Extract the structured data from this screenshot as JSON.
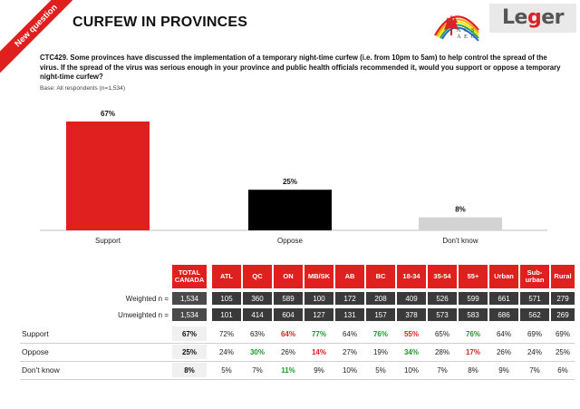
{
  "badge": "New question",
  "title": "CURFEW IN PROVINCES",
  "logos": {
    "acs_text_line1": "A C S",
    "acs_text_line2": "A E C",
    "leger_prefix": "Le",
    "leger_g": "g",
    "leger_suffix": "er"
  },
  "question": "CTC429. Some provinces have discussed the implementation of a temporary night-time curfew (i.e. from 10pm to 5am) to help control the spread of the virus. If the spread of the virus was serious enough in your province and public health officials recommended it, would you support or oppose a temporary night-time curfew?",
  "base": "Base: All respondents (n=1,534)",
  "colors": {
    "accent": "#e0201f",
    "dark": "#000000",
    "grey": "#d3d3d3",
    "green": "#1a9a2a"
  },
  "chart_data": {
    "type": "bar",
    "categories": [
      "Support",
      "Oppose",
      "Don't know"
    ],
    "values": [
      67,
      25,
      8
    ],
    "value_labels": [
      "67%",
      "25%",
      "8%"
    ],
    "colors": [
      "#e0201f",
      "#000000",
      "#d3d3d3"
    ],
    "ylim": [
      0,
      67
    ],
    "grid": false
  },
  "table": {
    "headers": [
      "TOTAL CANADA",
      "ATL",
      "QC",
      "ON",
      "MB/SK",
      "AB",
      "BC",
      "18-34",
      "35-54",
      "55+",
      "Urban",
      "Sub-urban",
      "Rural"
    ],
    "weighted_label": "Weighted n =",
    "unweighted_label": "Unweighted n =",
    "weighted": [
      "1,534",
      "105",
      "360",
      "589",
      "100",
      "172",
      "208",
      "409",
      "526",
      "599",
      "661",
      "571",
      "279"
    ],
    "unweighted": [
      "1,534",
      "101",
      "414",
      "604",
      "127",
      "131",
      "157",
      "378",
      "573",
      "583",
      "686",
      "562",
      "269"
    ],
    "rows": [
      {
        "label": "Support",
        "values": [
          "67%",
          "72%",
          "63%",
          "64%",
          "77%",
          "64%",
          "76%",
          "55%",
          "65%",
          "76%",
          "64%",
          "69%",
          "69%"
        ],
        "status": [
          "",
          "",
          "",
          "red",
          "green",
          "",
          "green",
          "red",
          "",
          "green",
          "",
          "",
          ""
        ]
      },
      {
        "label": "Oppose",
        "values": [
          "25%",
          "24%",
          "30%",
          "26%",
          "14%",
          "27%",
          "19%",
          "34%",
          "28%",
          "17%",
          "26%",
          "24%",
          "25%"
        ],
        "status": [
          "",
          "",
          "green",
          "",
          "red",
          "",
          "",
          "green",
          "",
          "red",
          "",
          "",
          ""
        ]
      },
      {
        "label": "Don't know",
        "values": [
          "8%",
          "5%",
          "7%",
          "11%",
          "9%",
          "10%",
          "5%",
          "10%",
          "7%",
          "8%",
          "9%",
          "7%",
          "6%"
        ],
        "status": [
          "",
          "",
          "",
          "green",
          "",
          "",
          "",
          "",
          "",
          "",
          "",
          "",
          ""
        ]
      }
    ]
  }
}
